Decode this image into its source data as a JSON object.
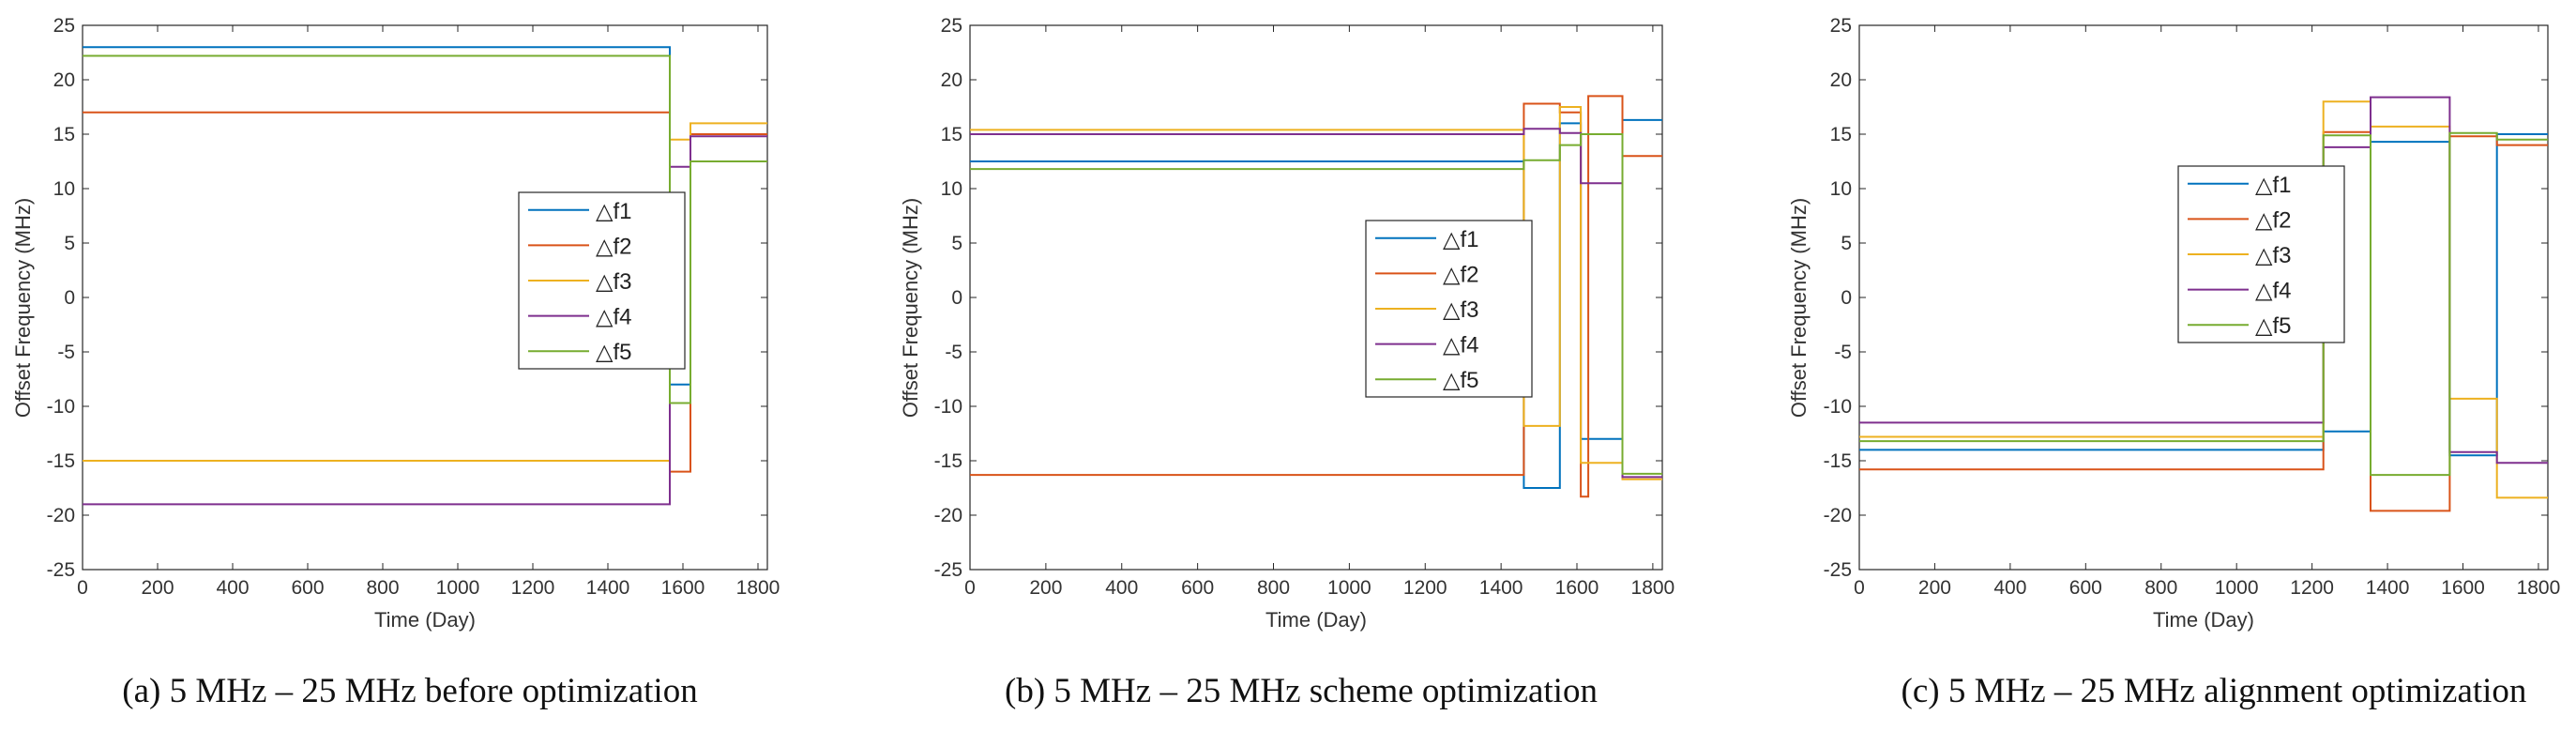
{
  "chart_data": [
    {
      "type": "line",
      "caption": "(a) 5 MHz – 25 MHz before optimization",
      "xlabel": "Time (Day)",
      "ylabel": "Offset Frequency (MHz)",
      "xlim": [
        0,
        1825
      ],
      "ylim": [
        -25,
        25
      ],
      "xticks": [
        0,
        200,
        400,
        600,
        800,
        1000,
        1200,
        1400,
        1600,
        1800
      ],
      "yticks": [
        -25,
        -20,
        -15,
        -10,
        -5,
        0,
        5,
        10,
        15,
        20,
        25
      ],
      "legend_position": "center-right",
      "series": [
        {
          "name": "△f1",
          "color": "#0072BD",
          "x": [
            0,
            1565,
            1565,
            1620,
            1620,
            1825
          ],
          "y": [
            23,
            23,
            -8,
            -8,
            15,
            15
          ]
        },
        {
          "name": "△f2",
          "color": "#D95319",
          "x": [
            0,
            1565,
            1565,
            1620,
            1620,
            1825
          ],
          "y": [
            17,
            17,
            -16,
            -16,
            15,
            15
          ]
        },
        {
          "name": "△f3",
          "color": "#EDB120",
          "x": [
            0,
            1565,
            1565,
            1620,
            1620,
            1825
          ],
          "y": [
            -15,
            -15,
            14.5,
            14.5,
            16,
            16
          ]
        },
        {
          "name": "△f4",
          "color": "#7E2F8E",
          "x": [
            0,
            1565,
            1565,
            1620,
            1620,
            1825
          ],
          "y": [
            -19,
            -19,
            12,
            12,
            14.8,
            14.8
          ]
        },
        {
          "name": "△f5",
          "color": "#77AC30",
          "x": [
            0,
            1565,
            1565,
            1620,
            1620,
            1825
          ],
          "y": [
            22.2,
            22.2,
            -9.7,
            -9.7,
            12.5,
            12.5
          ]
        }
      ]
    },
    {
      "type": "line",
      "caption": "(b) 5 MHz – 25 MHz scheme optimization",
      "xlabel": "Time (Day)",
      "ylabel": "Offset Frequency (MHz)",
      "xlim": [
        0,
        1825
      ],
      "ylim": [
        -25,
        25
      ],
      "xticks": [
        0,
        200,
        400,
        600,
        800,
        1000,
        1200,
        1400,
        1600,
        1800
      ],
      "yticks": [
        -25,
        -20,
        -15,
        -10,
        -5,
        0,
        5,
        10,
        15,
        20,
        25
      ],
      "legend_position": "center-right",
      "series": [
        {
          "name": "△f1",
          "color": "#0072BD",
          "x": [
            0,
            1460,
            1460,
            1555,
            1555,
            1610,
            1610,
            1720,
            1720,
            1825
          ],
          "y": [
            12.5,
            12.5,
            -17.5,
            -17.5,
            16,
            16,
            -13,
            -13,
            16.3,
            16.3
          ]
        },
        {
          "name": "△f2",
          "color": "#D95319",
          "x": [
            0,
            1460,
            1460,
            1555,
            1555,
            1610,
            1610,
            1630,
            1630,
            1720,
            1720,
            1825
          ],
          "y": [
            -16.3,
            -16.3,
            17.8,
            17.8,
            17,
            17,
            -18.3,
            -18.3,
            18.5,
            18.5,
            13,
            13
          ]
        },
        {
          "name": "△f3",
          "color": "#EDB120",
          "x": [
            0,
            1460,
            1460,
            1555,
            1555,
            1610,
            1610,
            1720,
            1720,
            1825
          ],
          "y": [
            15.4,
            15.4,
            -11.8,
            -11.8,
            17.5,
            17.5,
            -15.2,
            -15.2,
            -16.7,
            -16.7
          ]
        },
        {
          "name": "△f4",
          "color": "#7E2F8E",
          "x": [
            0,
            1460,
            1460,
            1555,
            1555,
            1610,
            1610,
            1720,
            1720,
            1825
          ],
          "y": [
            15,
            15,
            15.5,
            15.5,
            15.1,
            15.1,
            10.5,
            10.5,
            -16.5,
            -16.5
          ]
        },
        {
          "name": "△f5",
          "color": "#77AC30",
          "x": [
            0,
            1460,
            1460,
            1555,
            1555,
            1610,
            1610,
            1720,
            1720,
            1825
          ],
          "y": [
            11.8,
            11.8,
            12.6,
            12.6,
            14,
            14,
            15,
            15,
            -16.2,
            -16.2
          ]
        }
      ]
    },
    {
      "type": "line",
      "caption": "(c) 5 MHz – 25 MHz alignment optimization",
      "xlabel": "Time (Day)",
      "ylabel": "Offset Frequency (MHz)",
      "xlim": [
        0,
        1825
      ],
      "ylim": [
        -25,
        25
      ],
      "xticks": [
        0,
        200,
        400,
        600,
        800,
        1000,
        1200,
        1400,
        1600,
        1800
      ],
      "yticks": [
        -25,
        -20,
        -15,
        -10,
        -5,
        0,
        5,
        10,
        15,
        20,
        25
      ],
      "legend_position": "top-center",
      "series": [
        {
          "name": "△f1",
          "color": "#0072BD",
          "x": [
            0,
            1230,
            1230,
            1355,
            1355,
            1565,
            1565,
            1690,
            1690,
            1825
          ],
          "y": [
            -14,
            -14,
            -12.3,
            -12.3,
            14.3,
            14.3,
            -14.5,
            -14.5,
            15,
            15
          ]
        },
        {
          "name": "△f2",
          "color": "#D95319",
          "x": [
            0,
            1230,
            1230,
            1355,
            1355,
            1565,
            1565,
            1690,
            1690,
            1825
          ],
          "y": [
            -15.8,
            -15.8,
            15.2,
            15.2,
            -19.6,
            -19.6,
            14.8,
            14.8,
            14,
            14
          ]
        },
        {
          "name": "△f3",
          "color": "#EDB120",
          "x": [
            0,
            1230,
            1230,
            1355,
            1355,
            1565,
            1565,
            1690,
            1690,
            1825
          ],
          "y": [
            -12.8,
            -12.8,
            18,
            18,
            15.7,
            15.7,
            -9.3,
            -9.3,
            -18.4,
            -18.4
          ]
        },
        {
          "name": "△f4",
          "color": "#7E2F8E",
          "x": [
            0,
            1230,
            1230,
            1355,
            1355,
            1565,
            1565,
            1690,
            1690,
            1825
          ],
          "y": [
            -11.5,
            -11.5,
            13.8,
            13.8,
            18.4,
            18.4,
            -14.2,
            -14.2,
            -15.2,
            -15.2
          ]
        },
        {
          "name": "△f5",
          "color": "#77AC30",
          "x": [
            0,
            1230,
            1230,
            1355,
            1355,
            1565,
            1565,
            1690,
            1690,
            1825
          ],
          "y": [
            -13.2,
            -13.2,
            14.9,
            14.9,
            -16.3,
            -16.3,
            15.1,
            15.1,
            14.5,
            14.5
          ]
        }
      ]
    }
  ]
}
